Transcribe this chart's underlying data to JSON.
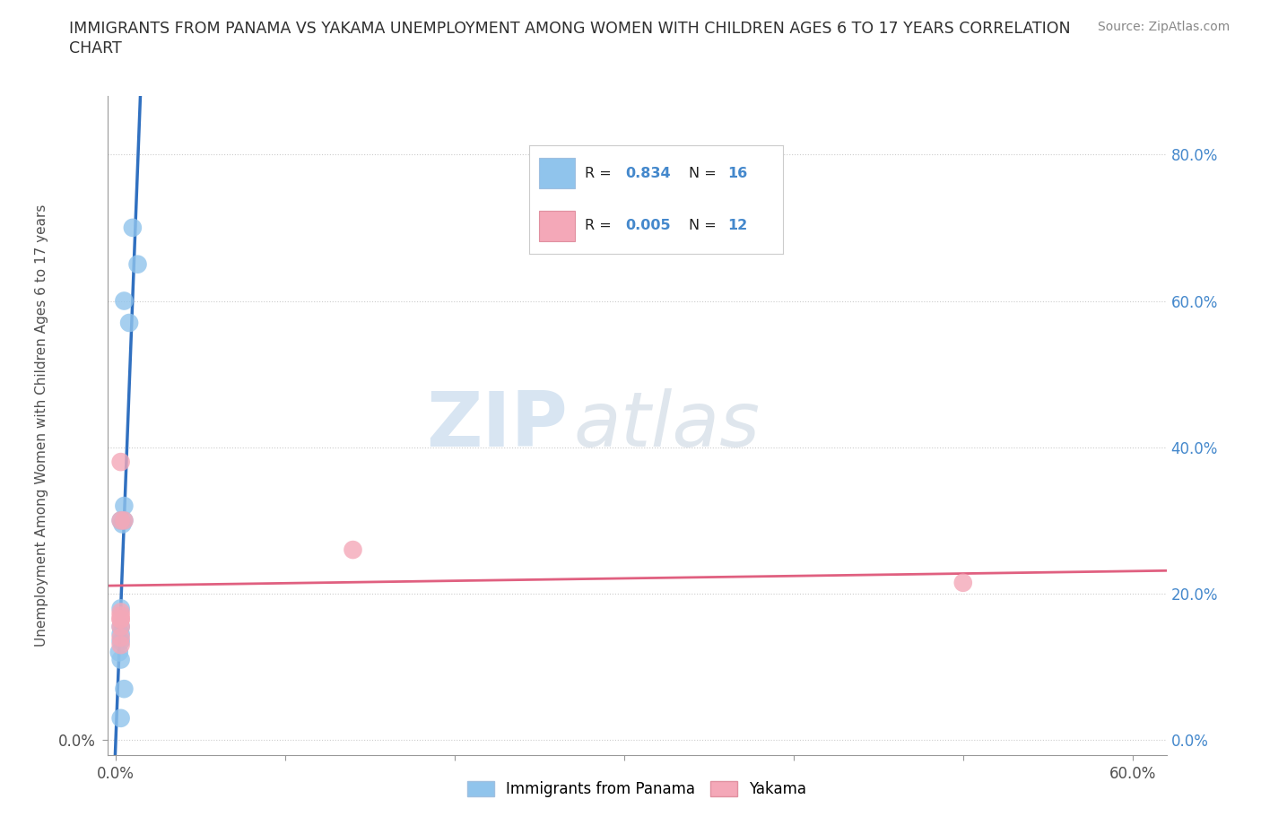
{
  "title_line1": "IMMIGRANTS FROM PANAMA VS YAKAMA UNEMPLOYMENT AMONG WOMEN WITH CHILDREN AGES 6 TO 17 YEARS CORRELATION",
  "title_line2": "CHART",
  "source": "Source: ZipAtlas.com",
  "ylabel": "Unemployment Among Women with Children Ages 6 to 17 years",
  "watermark_zip": "ZIP",
  "watermark_atlas": "atlas",
  "xlim": [
    -0.005,
    0.62
  ],
  "ylim": [
    -0.02,
    0.88
  ],
  "xticks": [
    0.0,
    0.1,
    0.2,
    0.3,
    0.4,
    0.5,
    0.6
  ],
  "xticklabels": [
    "0.0%",
    "",
    "",
    "",
    "",
    "",
    "60.0%"
  ],
  "yticks_left": [
    0.0
  ],
  "yticklabels_left": [
    "0.0%"
  ],
  "yticks_right": [
    0.0,
    0.2,
    0.4,
    0.6,
    0.8
  ],
  "yticklabels_right": [
    "0.0%",
    "20.0%",
    "40.0%",
    "60.0%",
    "80.0%"
  ],
  "panama_x": [
    0.01,
    0.013,
    0.005,
    0.008,
    0.005,
    0.003,
    0.005,
    0.004,
    0.003,
    0.003,
    0.003,
    0.003,
    0.002,
    0.003,
    0.005,
    0.003
  ],
  "panama_y": [
    0.7,
    0.65,
    0.6,
    0.57,
    0.32,
    0.3,
    0.3,
    0.295,
    0.18,
    0.155,
    0.145,
    0.135,
    0.12,
    0.11,
    0.07,
    0.03
  ],
  "yakama_x": [
    0.003,
    0.005,
    0.003,
    0.003,
    0.003,
    0.003,
    0.003,
    0.14,
    0.003,
    0.003,
    0.5,
    0.003
  ],
  "yakama_y": [
    0.38,
    0.3,
    0.3,
    0.175,
    0.165,
    0.155,
    0.14,
    0.26,
    0.165,
    0.17,
    0.215,
    0.13
  ],
  "panama_color": "#90c4ec",
  "yakama_color": "#f4a8b8",
  "panama_line_color": "#3070c0",
  "yakama_line_color": "#e06080",
  "panama_R": "0.834",
  "panama_N": "16",
  "yakama_R": "0.005",
  "yakama_N": "12",
  "legend_labels": [
    "Immigrants from Panama",
    "Yakama"
  ],
  "grid_color": "#cccccc",
  "bg_color": "#ffffff",
  "title_color": "#303030",
  "right_ytick_color": "#4488cc",
  "source_color": "#888888"
}
